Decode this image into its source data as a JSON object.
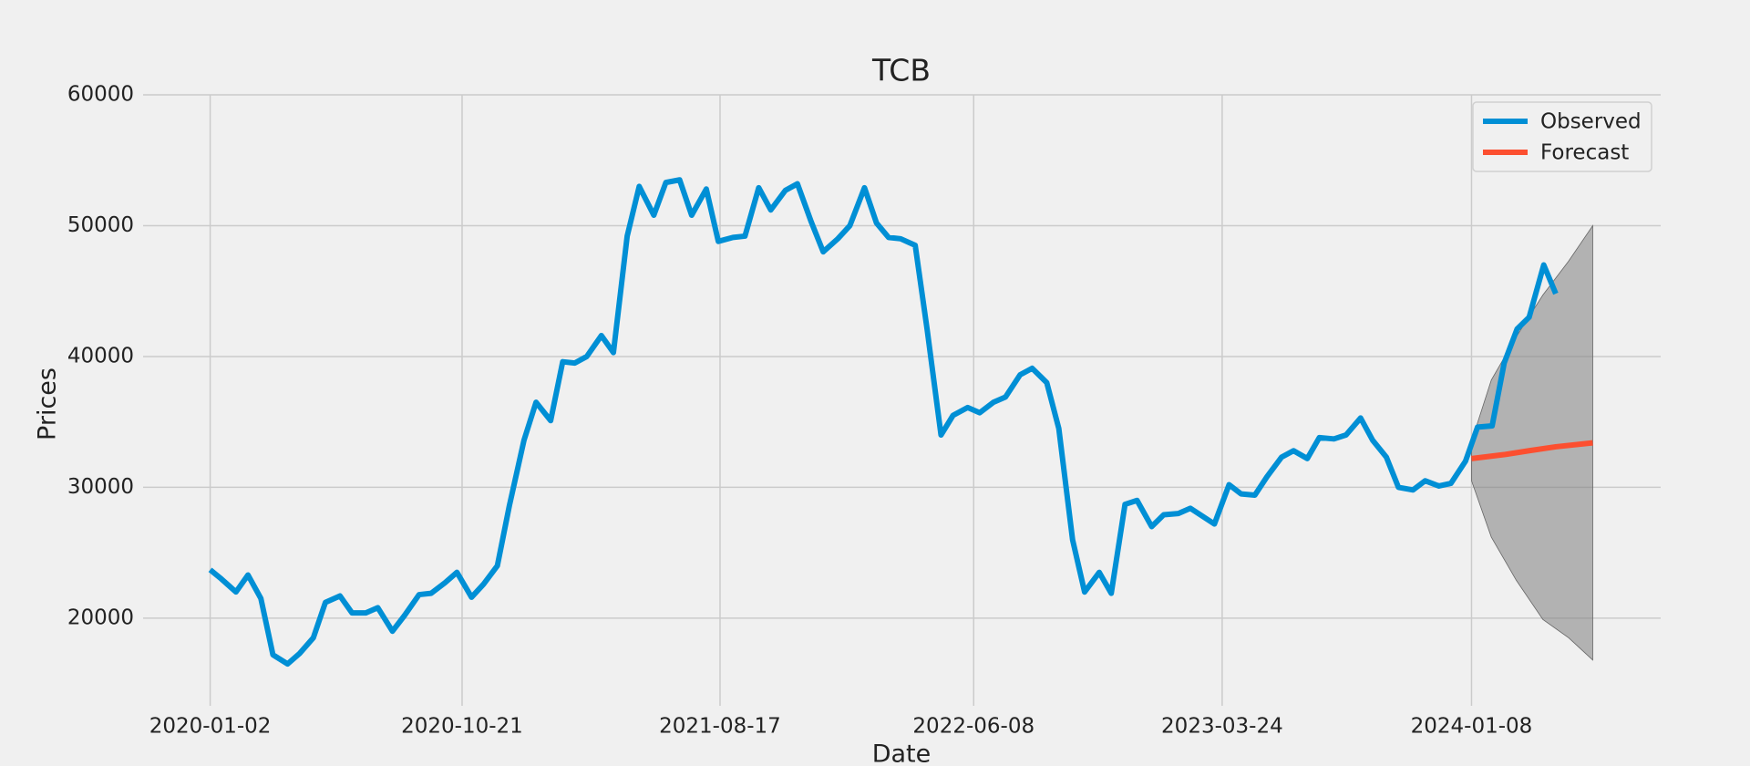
{
  "chart_data": {
    "type": "line",
    "title": "TCB",
    "x_label": "Date",
    "y_label": "Prices",
    "xlim": [
      "2019-10-16",
      "2024-08-15"
    ],
    "xticks": [
      "2020-01-02",
      "2020-10-21",
      "2021-08-17",
      "2022-06-08",
      "2023-03-24",
      "2024-01-08"
    ],
    "ylim": [
      13300,
      60000
    ],
    "yticks": [
      20000,
      30000,
      40000,
      50000,
      60000
    ],
    "grid": true,
    "legend": "upper right",
    "series": [
      {
        "name": "Observed",
        "color": "#008fd5",
        "x": [
          "2020-01-02",
          "2020-01-15",
          "2020-02-01",
          "2020-02-15",
          "2020-03-01",
          "2020-03-15",
          "2020-04-01",
          "2020-04-15",
          "2020-05-01",
          "2020-05-15",
          "2020-06-01",
          "2020-06-15",
          "2020-07-01",
          "2020-07-15",
          "2020-08-01",
          "2020-08-15",
          "2020-09-01",
          "2020-09-15",
          "2020-10-01",
          "2020-10-15",
          "2020-11-01",
          "2020-11-15",
          "2020-12-01",
          "2020-12-15",
          "2021-01-01",
          "2021-01-15",
          "2021-02-01",
          "2021-02-15",
          "2021-03-01",
          "2021-03-15",
          "2021-04-01",
          "2021-04-15",
          "2021-05-01",
          "2021-05-15",
          "2021-06-01",
          "2021-06-15",
          "2021-07-01",
          "2021-07-15",
          "2021-08-01",
          "2021-08-15",
          "2021-09-01",
          "2021-09-15",
          "2021-10-01",
          "2021-10-15",
          "2021-11-01",
          "2021-11-15",
          "2021-12-01",
          "2021-12-15",
          "2022-01-01",
          "2022-01-15",
          "2022-02-01",
          "2022-02-15",
          "2022-03-01",
          "2022-03-15",
          "2022-04-01",
          "2022-04-15",
          "2022-05-01",
          "2022-05-15",
          "2022-06-01",
          "2022-06-15",
          "2022-07-01",
          "2022-07-15",
          "2022-08-01",
          "2022-08-15",
          "2022-09-01",
          "2022-09-15",
          "2022-10-01",
          "2022-10-15",
          "2022-11-01",
          "2022-11-15",
          "2022-12-01",
          "2022-12-15",
          "2023-01-01",
          "2023-01-15",
          "2023-02-01",
          "2023-02-15",
          "2023-03-01",
          "2023-03-15",
          "2023-04-01",
          "2023-04-15",
          "2023-05-01",
          "2023-05-15",
          "2023-06-01",
          "2023-06-15",
          "2023-07-01",
          "2023-07-15",
          "2023-08-01",
          "2023-08-15",
          "2023-09-01",
          "2023-09-15",
          "2023-10-01",
          "2023-10-15",
          "2023-11-01",
          "2023-11-15",
          "2023-12-01",
          "2023-12-15",
          "2024-01-01",
          "2024-01-15",
          "2024-02-01",
          "2024-02-15",
          "2024-03-01",
          "2024-03-15",
          "2024-04-01",
          "2024-04-15"
        ],
        "values": [
          23700,
          23000,
          22000,
          23300,
          21500,
          17200,
          16500,
          17300,
          18500,
          21200,
          21700,
          20400,
          20400,
          20800,
          19000,
          20200,
          21800,
          21900,
          22700,
          23500,
          21600,
          22600,
          24000,
          28600,
          33600,
          36500,
          35100,
          39600,
          39500,
          40000,
          41600,
          40300,
          49200,
          53000,
          50800,
          53300,
          53500,
          50800,
          52800,
          48800,
          49100,
          49200,
          52900,
          51200,
          52700,
          53200,
          50300,
          48000,
          49000,
          50000,
          52900,
          50200,
          49100,
          49000,
          48500,
          42000,
          34000,
          35500,
          36100,
          35700,
          36500,
          36900,
          38600,
          39100,
          38000,
          34500,
          26000,
          22000,
          23500,
          21900,
          28700,
          29000,
          27000,
          27900,
          28000,
          28400,
          27800,
          27200,
          30200,
          29500,
          29400,
          30800,
          32300,
          32800,
          32200,
          33800,
          33700,
          34000,
          35300,
          33600,
          32300,
          30000,
          29800,
          30500,
          30100,
          30300,
          32000,
          34600,
          34700,
          39500,
          42100,
          43000,
          47000,
          44800
        ]
      },
      {
        "name": "Forecast",
        "color": "#fc4f30",
        "x": [
          "2024-01-08",
          "2024-02-15",
          "2024-03-15",
          "2024-04-15",
          "2024-05-28"
        ],
        "values": [
          32200,
          32500,
          32800,
          33100,
          33400
        ]
      }
    ],
    "confidence_band": {
      "color": "#808080",
      "x": [
        "2024-01-08",
        "2024-01-31",
        "2024-02-29",
        "2024-03-31",
        "2024-04-30",
        "2024-05-28"
      ],
      "lower": [
        30500,
        26200,
        22900,
        19900,
        18500,
        16800
      ],
      "upper": [
        33500,
        38200,
        41500,
        44700,
        47300,
        50000
      ]
    }
  }
}
